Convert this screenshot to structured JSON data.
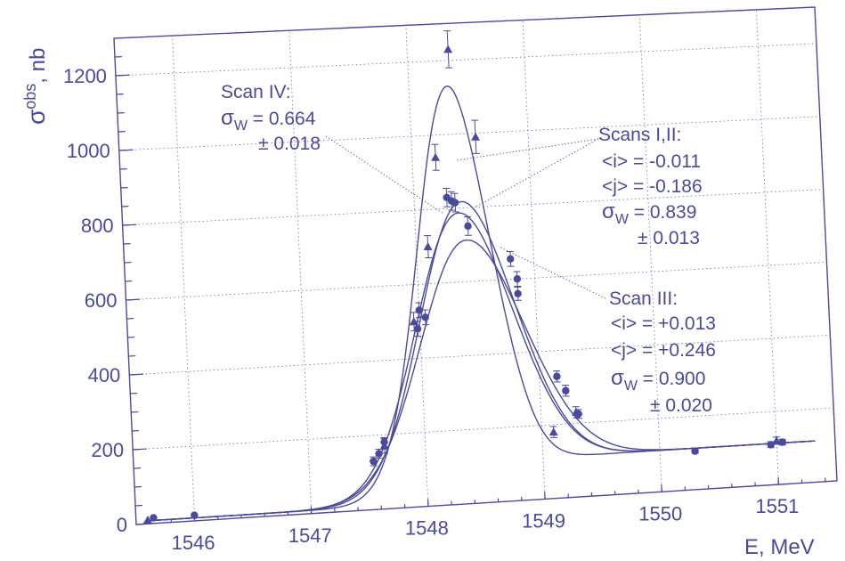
{
  "chart_data": {
    "type": "scatter",
    "xlabel": "E, MeV",
    "ylabel_main": "σ",
    "ylabel_sup": "obs",
    "ylabel_unit": ", nb",
    "xlim": [
      1545.5,
      1551.5
    ],
    "ylim": [
      0,
      1300
    ],
    "x_ticks": [
      1546,
      1547,
      1548,
      1549,
      1550,
      1551
    ],
    "y_ticks": [
      0,
      200,
      400,
      600,
      800,
      1000,
      1200
    ],
    "grid": true,
    "series": [
      {
        "marker": "triangle",
        "points": [
          {
            "x": 1545.6,
            "y": 10
          },
          {
            "x": 1547.65,
            "y": 170
          },
          {
            "x": 1547.95,
            "y": 500
          },
          {
            "x": 1548.1,
            "y": 700
          },
          {
            "x": 1548.2,
            "y": 940
          },
          {
            "x": 1548.35,
            "y": 1230
          },
          {
            "x": 1548.55,
            "y": 990
          },
          {
            "x": 1549.1,
            "y": 180
          },
          {
            "x": 1549.3,
            "y": 230
          },
          {
            "x": 1551.0,
            "y": 120
          }
        ],
        "errors": [
          3,
          20,
          25,
          30,
          35,
          50,
          45,
          15,
          15,
          10
        ]
      },
      {
        "marker": "circle",
        "points": [
          {
            "x": 1545.65,
            "y": 15
          },
          {
            "x": 1546.0,
            "y": 15
          },
          {
            "x": 1547.55,
            "y": 130
          },
          {
            "x": 1547.6,
            "y": 150
          },
          {
            "x": 1547.65,
            "y": 180
          },
          {
            "x": 1547.98,
            "y": 480
          },
          {
            "x": 1548.0,
            "y": 530
          },
          {
            "x": 1548.05,
            "y": 510
          },
          {
            "x": 1548.28,
            "y": 830
          },
          {
            "x": 1548.32,
            "y": 820
          },
          {
            "x": 1548.35,
            "y": 815
          },
          {
            "x": 1548.45,
            "y": 750
          },
          {
            "x": 1548.8,
            "y": 655
          },
          {
            "x": 1548.85,
            "y": 600
          },
          {
            "x": 1548.85,
            "y": 560
          },
          {
            "x": 1549.15,
            "y": 330
          },
          {
            "x": 1549.22,
            "y": 290
          },
          {
            "x": 1549.32,
            "y": 225
          },
          {
            "x": 1550.3,
            "y": 105
          },
          {
            "x": 1550.95,
            "y": 110
          },
          {
            "x": 1551.05,
            "y": 115
          }
        ],
        "errors": [
          3,
          3,
          12,
          12,
          12,
          20,
          20,
          20,
          25,
          25,
          25,
          25,
          20,
          20,
          18,
          15,
          15,
          12,
          6,
          8,
          8
        ]
      }
    ],
    "fit_curves": [
      {
        "center": 1548.32,
        "peak_above_bg": 1070,
        "sigma_left": 0.32,
        "sigma_right": 0.3,
        "tail": 0.012
      },
      {
        "center": 1548.38,
        "peak_above_bg": 755,
        "sigma_left": 0.39,
        "sigma_right": 0.42,
        "tail": 0.012
      },
      {
        "center": 1548.35,
        "peak_above_bg": 725,
        "sigma_left": 0.4,
        "sigma_right": 0.43,
        "tail": 0.012
      },
      {
        "center": 1548.4,
        "peak_above_bg": 650,
        "sigma_left": 0.42,
        "sigma_right": 0.47,
        "tail": 0.012
      }
    ],
    "annotations": {
      "scan4": {
        "title": "Scan IV:",
        "sigma_sym": "σ",
        "sigma_sub": "W",
        "eq": " = 0.664",
        "err": "± 0.018"
      },
      "scans12": {
        "title": "Scans I,II:",
        "i": "<i> = -0.011",
        "j": "<j> = -0.186",
        "sigma_sym": "σ",
        "sigma_sub": "W",
        "eq": " = 0.839",
        "err": "± 0.013"
      },
      "scan3": {
        "title": "Scan III:",
        "i": "<i> = +0.013",
        "j": "<j> = +0.246",
        "sigma_sym": "σ",
        "sigma_sub": "W",
        "eq": " = 0.900",
        "err": "± 0.020"
      }
    }
  }
}
